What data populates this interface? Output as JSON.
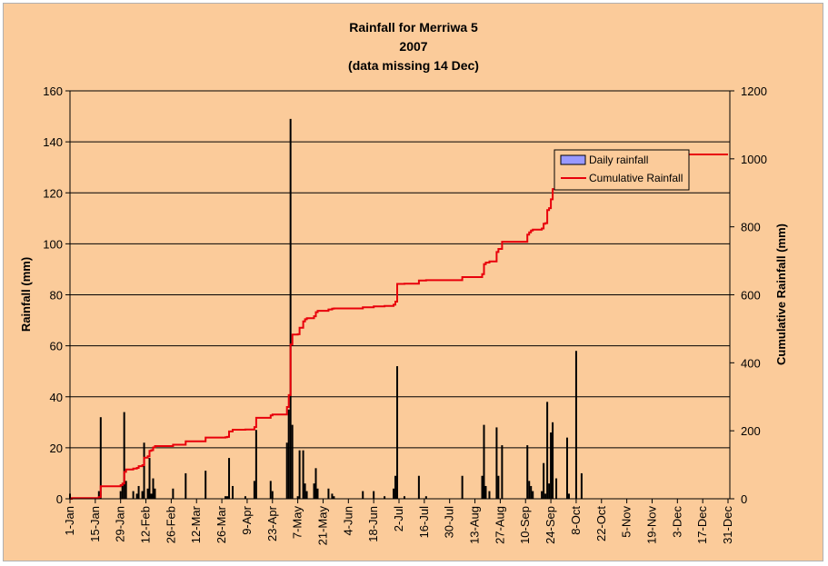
{
  "chart_data": {
    "type": "bar+line",
    "title_lines": [
      "Rainfall for Merriwa 5",
      "2007",
      "(data missing 14 Dec)"
    ],
    "ylabel": "Rainfall (mm)",
    "y2label": "Cumulative Rainfall (mm)",
    "ylim": [
      0,
      160
    ],
    "y2lim": [
      0,
      1200
    ],
    "yticks": [
      0,
      20,
      40,
      60,
      80,
      100,
      120,
      140,
      160
    ],
    "y2ticks": [
      0,
      200,
      400,
      600,
      800,
      1000,
      1200
    ],
    "x_tick_labels": [
      "1-Jan",
      "15-Jan",
      "29-Jan",
      "12-Feb",
      "26-Feb",
      "12-Mar",
      "26-Mar",
      "9-Apr",
      "23-Apr",
      "7-May",
      "21-May",
      "4-Jun",
      "18-Jun",
      "2-Jul",
      "16-Jul",
      "30-Jul",
      "13-Aug",
      "27-Aug",
      "10-Sep",
      "24-Sep",
      "8-Oct",
      "22-Oct",
      "5-Nov",
      "19-Nov",
      "3-Dec",
      "17-Dec",
      "31-Dec"
    ],
    "grid": "horizontal",
    "legend_position": "top-right",
    "series": [
      {
        "name": "Daily rainfall",
        "type": "bar",
        "color": "#000000",
        "legend_swatch": "#9999ff",
        "day_values": [
          [
            1,
            2
          ],
          [
            17,
            3
          ],
          [
            18,
            32
          ],
          [
            29,
            3
          ],
          [
            30,
            5
          ],
          [
            31,
            34
          ],
          [
            32,
            7
          ],
          [
            36,
            3
          ],
          [
            38,
            2
          ],
          [
            39,
            5
          ],
          [
            41,
            3
          ],
          [
            42,
            22
          ],
          [
            44,
            4
          ],
          [
            45,
            16
          ],
          [
            46,
            2
          ],
          [
            47,
            8
          ],
          [
            48,
            4
          ],
          [
            58,
            4
          ],
          [
            65,
            10
          ],
          [
            76,
            11
          ],
          [
            87,
            1
          ],
          [
            88,
            1
          ],
          [
            89,
            16
          ],
          [
            91,
            5
          ],
          [
            98,
            1
          ],
          [
            103,
            7
          ],
          [
            104,
            27
          ],
          [
            112,
            7
          ],
          [
            113,
            3
          ],
          [
            121,
            22
          ],
          [
            122,
            35
          ],
          [
            123,
            149
          ],
          [
            124,
            29
          ],
          [
            127,
            1
          ],
          [
            128,
            19
          ],
          [
            130,
            19
          ],
          [
            131,
            6
          ],
          [
            132,
            3
          ],
          [
            136,
            6
          ],
          [
            137,
            12
          ],
          [
            138,
            4
          ],
          [
            144,
            4
          ],
          [
            146,
            2
          ],
          [
            147,
            1
          ],
          [
            163,
            3
          ],
          [
            169,
            3
          ],
          [
            175,
            1
          ],
          [
            180,
            4
          ],
          [
            181,
            9
          ],
          [
            182,
            52
          ],
          [
            186,
            1
          ],
          [
            194,
            9
          ],
          [
            198,
            1
          ],
          [
            218,
            9
          ],
          [
            229,
            9
          ],
          [
            230,
            29
          ],
          [
            231,
            5
          ],
          [
            233,
            3
          ],
          [
            237,
            28
          ],
          [
            238,
            9
          ],
          [
            240,
            21
          ],
          [
            254,
            21
          ],
          [
            255,
            7
          ],
          [
            256,
            5
          ],
          [
            257,
            3
          ],
          [
            262,
            3
          ],
          [
            263,
            14
          ],
          [
            264,
            2
          ],
          [
            265,
            38
          ],
          [
            266,
            6
          ],
          [
            267,
            26
          ],
          [
            268,
            30
          ],
          [
            270,
            8
          ],
          [
            276,
            24
          ],
          [
            277,
            2
          ],
          [
            281,
            58
          ],
          [
            284,
            10
          ]
        ]
      },
      {
        "name": "Cumulative Rainfall",
        "type": "line",
        "color": "#e8000b",
        "day_values": [
          [
            1,
            0
          ],
          [
            2,
            2
          ],
          [
            17,
            5
          ],
          [
            18,
            37
          ],
          [
            29,
            40
          ],
          [
            30,
            45
          ],
          [
            31,
            79
          ],
          [
            32,
            86
          ],
          [
            36,
            89
          ],
          [
            38,
            91
          ],
          [
            39,
            96
          ],
          [
            41,
            99
          ],
          [
            42,
            121
          ],
          [
            44,
            125
          ],
          [
            45,
            141
          ],
          [
            46,
            143
          ],
          [
            47,
            151
          ],
          [
            48,
            155
          ],
          [
            58,
            159
          ],
          [
            65,
            169
          ],
          [
            76,
            180
          ],
          [
            87,
            181
          ],
          [
            88,
            182
          ],
          [
            89,
            198
          ],
          [
            91,
            203
          ],
          [
            98,
            204
          ],
          [
            103,
            211
          ],
          [
            104,
            238
          ],
          [
            112,
            245
          ],
          [
            113,
            248
          ],
          [
            121,
            270
          ],
          [
            122,
            305
          ],
          [
            123,
            454
          ],
          [
            124,
            483
          ],
          [
            127,
            484
          ],
          [
            128,
            503
          ],
          [
            130,
            522
          ],
          [
            131,
            528
          ],
          [
            132,
            531
          ],
          [
            136,
            537
          ],
          [
            137,
            549
          ],
          [
            138,
            553
          ],
          [
            144,
            557
          ],
          [
            146,
            559
          ],
          [
            147,
            560
          ],
          [
            163,
            563
          ],
          [
            169,
            566
          ],
          [
            175,
            567
          ],
          [
            180,
            571
          ],
          [
            181,
            580
          ],
          [
            182,
            632
          ],
          [
            186,
            633
          ],
          [
            194,
            642
          ],
          [
            198,
            643
          ],
          [
            218,
            652
          ],
          [
            229,
            661
          ],
          [
            230,
            690
          ],
          [
            231,
            695
          ],
          [
            233,
            698
          ],
          [
            237,
            726
          ],
          [
            238,
            735
          ],
          [
            240,
            756
          ],
          [
            254,
            777
          ],
          [
            255,
            784
          ],
          [
            256,
            789
          ],
          [
            257,
            792
          ],
          [
            262,
            795
          ],
          [
            263,
            809
          ],
          [
            264,
            811
          ],
          [
            265,
            849
          ],
          [
            266,
            855
          ],
          [
            267,
            881
          ],
          [
            268,
            911
          ],
          [
            270,
            919
          ],
          [
            276,
            943
          ],
          [
            277,
            945
          ],
          [
            281,
            1003
          ],
          [
            284,
            1013
          ],
          [
            365,
            1013
          ]
        ]
      }
    ]
  }
}
